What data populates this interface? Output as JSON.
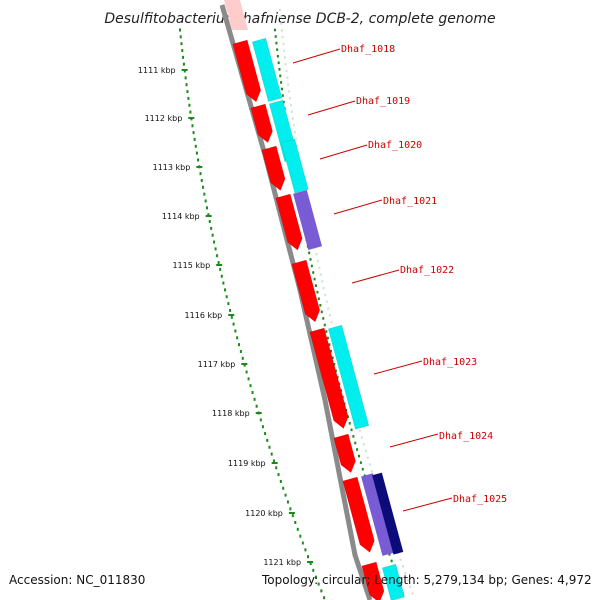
{
  "title": "Desulfitobacterium hafniense DCB-2, complete genome",
  "footer": {
    "accession": "Accession: NC_011830",
    "topology": "Topology: circular; Length: 5,279,134 bp; Genes: 4,972"
  },
  "colors": {
    "gene_red": "#ff0000",
    "gene_cyan": "#00eeee",
    "gene_purple": "#7a5bd6",
    "gene_navy": "#0b0b7a",
    "backbone": "#8a8a8a",
    "scale_dots": "#1a8a1a",
    "label_red": "#cc0000"
  },
  "scale": {
    "unit": "kbp",
    "ticks": [
      "1111 kbp",
      "1112 kbp",
      "1113 kbp",
      "1114 kbp",
      "1115 kbp",
      "1116 kbp",
      "1117 kbp",
      "1118 kbp",
      "1119 kbp",
      "1120 kbp",
      "1121 kbp"
    ]
  },
  "genes": [
    {
      "label": "Dhaf_1018"
    },
    {
      "label": "Dhaf_1019"
    },
    {
      "label": "Dhaf_1020"
    },
    {
      "label": "Dhaf_1021"
    },
    {
      "label": "Dhaf_1022"
    },
    {
      "label": "Dhaf_1023"
    },
    {
      "label": "Dhaf_1024"
    },
    {
      "label": "Dhaf_1025"
    }
  ]
}
